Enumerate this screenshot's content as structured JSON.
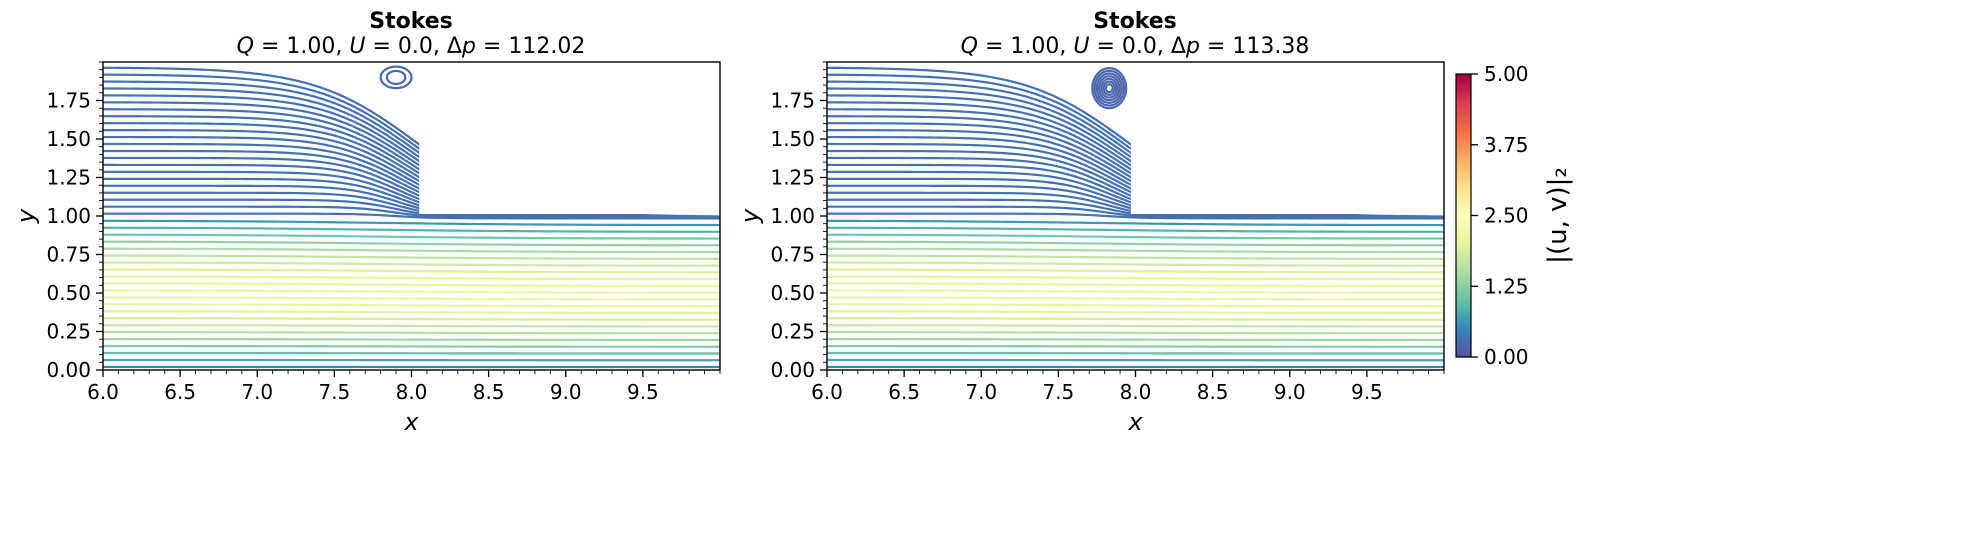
{
  "colormap": [
    "#5e4fa2",
    "#3288bd",
    "#66c2a5",
    "#abdda4",
    "#e6f598",
    "#ffffbf",
    "#fee08b",
    "#fdae61",
    "#f46d43",
    "#d53e4f",
    "#9e0142"
  ],
  "chart_data": [
    {
      "type": "line",
      "title": "Stokes",
      "subtitle": "Q = 1.00, U = 0.0, Δp = 112.02",
      "xlabel": "x",
      "ylabel": "y",
      "xlim": [
        6.0,
        10.0
      ],
      "ylim": [
        0.0,
        2.0
      ],
      "xticks": [
        "6.0",
        "6.5",
        "7.0",
        "7.5",
        "8.0",
        "8.5",
        "9.0",
        "9.5"
      ],
      "yticks": [
        "0.00",
        "0.25",
        "0.50",
        "0.75",
        "1.00",
        "1.25",
        "1.50",
        "1.75"
      ],
      "step_x": 8.05,
      "step_y": 1.0,
      "n_streamlines": 44,
      "vortex": {
        "cx": 7.9,
        "cy": 1.9,
        "rx": 0.1,
        "ry": 0.07,
        "rings": 2
      }
    },
    {
      "type": "line",
      "title": "Stokes",
      "subtitle": "Q = 1.00, U = 0.0, Δp = 113.38",
      "xlabel": "x",
      "ylabel": "y",
      "xlim": [
        6.0,
        10.0
      ],
      "ylim": [
        0.0,
        2.0
      ],
      "xticks": [
        "6.0",
        "6.5",
        "7.0",
        "7.5",
        "8.0",
        "8.5",
        "9.0",
        "9.5"
      ],
      "yticks": [
        "0.00",
        "0.25",
        "0.50",
        "0.75",
        "1.00",
        "1.25",
        "1.50",
        "1.75"
      ],
      "step_x": 7.97,
      "step_y": 1.0,
      "n_streamlines": 44,
      "vortex": {
        "cx": 7.83,
        "cy": 1.83,
        "rx": 0.11,
        "ry": 0.13,
        "rings": 7
      }
    }
  ],
  "colorbar": {
    "label": "|(u, v)|₂",
    "ticks": [
      "0.00",
      "1.25",
      "2.50",
      "3.75",
      "5.00"
    ],
    "range": [
      0.0,
      5.0
    ]
  }
}
